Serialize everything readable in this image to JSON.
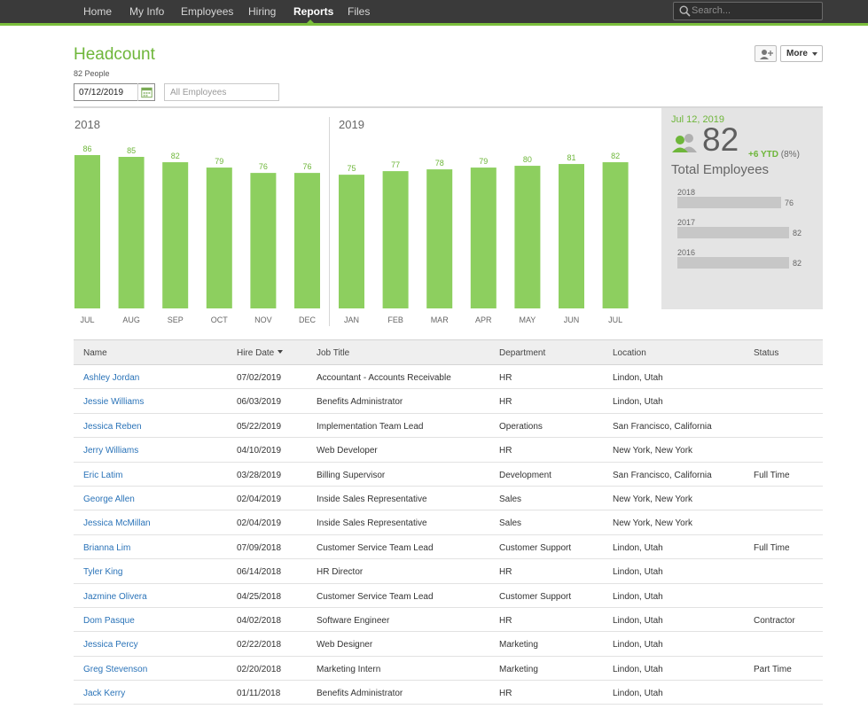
{
  "nav": {
    "items": [
      "Home",
      "My Info",
      "Employees",
      "Hiring",
      "Reports",
      "Files"
    ],
    "active": "Reports",
    "search_placeholder": "Search..."
  },
  "header": {
    "title": "Headcount",
    "people_count": "82 People",
    "date_value": "07/12/2019",
    "employee_filter_placeholder": "All Employees",
    "more_label": "More"
  },
  "chart_data": {
    "type": "bar",
    "groups": [
      "2018",
      "2019"
    ],
    "categories": [
      "JUL",
      "AUG",
      "SEP",
      "OCT",
      "NOV",
      "DEC",
      "JAN",
      "FEB",
      "MAR",
      "APR",
      "MAY",
      "JUN",
      "JUL"
    ],
    "category_group": [
      "2018",
      "2018",
      "2018",
      "2018",
      "2018",
      "2018",
      "2019",
      "2019",
      "2019",
      "2019",
      "2019",
      "2019",
      "2019"
    ],
    "values": [
      86,
      85,
      82,
      79,
      76,
      76,
      75,
      77,
      78,
      79,
      80,
      81,
      82
    ],
    "ylim": [
      0,
      86
    ],
    "color": "#8dcf5f",
    "label_color": "#6eb63a"
  },
  "summary": {
    "date": "Jul 12, 2019",
    "total": "82",
    "ytd_change": "+6 YTD",
    "ytd_pct": "(8%)",
    "label": "Total Employees",
    "history": [
      {
        "year": "2018",
        "value": 76
      },
      {
        "year": "2017",
        "value": 82
      },
      {
        "year": "2016",
        "value": 82
      }
    ]
  },
  "table": {
    "columns": [
      "Name",
      "Hire Date",
      "Job Title",
      "Department",
      "Location",
      "Status"
    ],
    "rows": [
      [
        "Ashley Jordan",
        "07/02/2019",
        "Accountant - Accounts Receivable",
        "HR",
        "Lindon, Utah",
        ""
      ],
      [
        "Jessie Williams",
        "06/03/2019",
        "Benefits Administrator",
        "HR",
        "Lindon, Utah",
        ""
      ],
      [
        "Jessica Reben",
        "05/22/2019",
        "Implementation Team Lead",
        "Operations",
        "San Francisco, California",
        ""
      ],
      [
        "Jerry Williams",
        "04/10/2019",
        "Web Developer",
        "HR",
        "New York, New York",
        ""
      ],
      [
        "Eric Latim",
        "03/28/2019",
        "Billing Supervisor",
        "Development",
        "San Francisco, California",
        "Full Time"
      ],
      [
        "George Allen",
        "02/04/2019",
        "Inside Sales Representative",
        "Sales",
        "New York, New York",
        ""
      ],
      [
        "Jessica McMillan",
        "02/04/2019",
        "Inside Sales Representative",
        "Sales",
        "New York, New York",
        ""
      ],
      [
        "Brianna Lim",
        "07/09/2018",
        "Customer Service Team Lead",
        "Customer Support",
        "Lindon, Utah",
        "Full Time"
      ],
      [
        "Tyler King",
        "06/14/2018",
        "HR Director",
        "HR",
        "Lindon, Utah",
        ""
      ],
      [
        "Jazmine Olivera",
        "04/25/2018",
        "Customer Service Team Lead",
        "Customer Support",
        "Lindon, Utah",
        ""
      ],
      [
        "Dom Pasque",
        "04/02/2018",
        "Software Engineer",
        "HR",
        "Lindon, Utah",
        "Contractor"
      ],
      [
        "Jessica Percy",
        "02/22/2018",
        "Web Designer",
        "Marketing",
        "Lindon, Utah",
        ""
      ],
      [
        "Greg Stevenson",
        "02/20/2018",
        "Marketing Intern",
        "Marketing",
        "Lindon, Utah",
        "Part Time"
      ],
      [
        "Jack Kerry",
        "01/11/2018",
        "Benefits Administrator",
        "HR",
        "Lindon, Utah",
        ""
      ]
    ]
  },
  "colors": {
    "accent": "#6eb63a",
    "nav_bg": "#3a3a3a",
    "link": "#2a73b8"
  }
}
